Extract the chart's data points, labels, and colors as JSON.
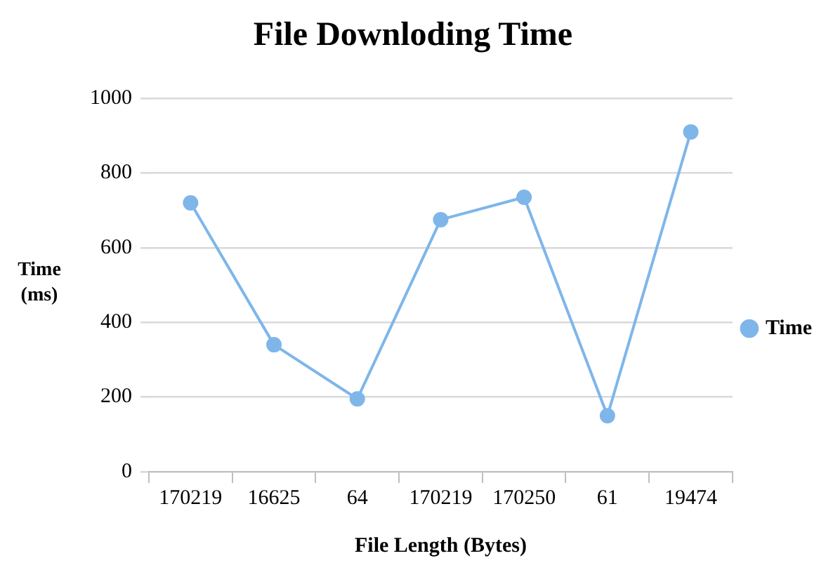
{
  "chart_data": {
    "type": "line",
    "title": "File Downloding Time",
    "xlabel": "File Length (Bytes)",
    "ylabel": "Time (ms)",
    "categories": [
      "170219",
      "16625",
      "64",
      "170219",
      "170250",
      "61",
      "19474"
    ],
    "series": [
      {
        "name": "Time",
        "color": "#7fb6ea",
        "values": [
          720,
          340,
          195,
          675,
          735,
          150,
          910
        ]
      }
    ],
    "ylim": [
      0,
      1000
    ],
    "yticks": [
      0,
      200,
      400,
      600,
      800,
      1000
    ],
    "grid": "y",
    "legend": "right",
    "marker": "circle"
  }
}
